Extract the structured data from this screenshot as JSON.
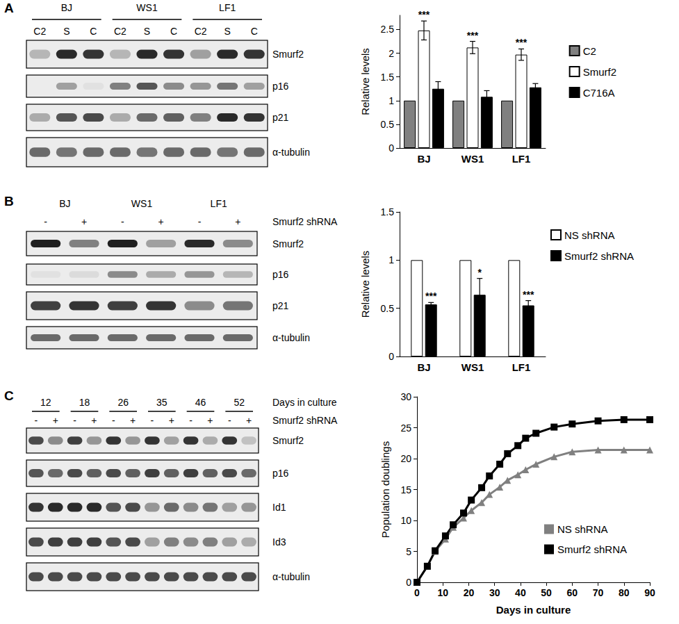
{
  "panel_labels": [
    "A",
    "B",
    "C"
  ],
  "blots": [
    {
      "groups": [
        {
          "name": "BJ",
          "lanes": [
            "C2",
            "S",
            "C"
          ]
        },
        {
          "name": "WS1",
          "lanes": [
            "C2",
            "S",
            "C"
          ]
        },
        {
          "name": "LF1",
          "lanes": [
            "C2",
            "S",
            "C"
          ]
        }
      ],
      "rows": [
        {
          "label": "Smurf2",
          "intensity": [
            0.25,
            0.9,
            0.85,
            0.25,
            0.9,
            0.85,
            0.35,
            0.9,
            0.85
          ]
        },
        {
          "label": "p16",
          "intensity": [
            0.0,
            0.35,
            0.05,
            0.5,
            0.7,
            0.45,
            0.4,
            0.55,
            0.35
          ]
        },
        {
          "label": "p21",
          "intensity": [
            0.3,
            0.7,
            0.75,
            0.3,
            0.6,
            0.65,
            0.5,
            0.9,
            0.85
          ]
        },
        {
          "label": "α-tubulin",
          "intensity": [
            0.6,
            0.55,
            0.6,
            0.6,
            0.55,
            0.6,
            0.6,
            0.55,
            0.6
          ]
        }
      ]
    },
    {
      "groups": [
        {
          "name": "BJ",
          "lanes": [
            "-",
            "+"
          ]
        },
        {
          "name": "WS1",
          "lanes": [
            "-",
            "+"
          ]
        },
        {
          "name": "LF1",
          "lanes": [
            "-",
            "+"
          ]
        }
      ],
      "lane_title": "Smurf2 shRNA",
      "rows": [
        {
          "label": "Smurf2",
          "intensity": [
            0.95,
            0.5,
            0.95,
            0.35,
            0.9,
            0.45
          ]
        },
        {
          "label": "p16",
          "intensity": [
            0.05,
            0.08,
            0.45,
            0.3,
            0.4,
            0.25
          ]
        },
        {
          "label": "p21",
          "intensity": [
            0.8,
            0.85,
            0.8,
            0.85,
            0.45,
            0.55
          ]
        },
        {
          "label": "α-tubulin",
          "intensity": [
            0.6,
            0.6,
            0.6,
            0.6,
            0.6,
            0.6
          ]
        }
      ]
    },
    {
      "groups": [
        {
          "name": "12",
          "lanes": [
            "-",
            "+"
          ]
        },
        {
          "name": "18",
          "lanes": [
            "-",
            "+"
          ]
        },
        {
          "name": "26",
          "lanes": [
            "-",
            "+"
          ]
        },
        {
          "name": "35",
          "lanes": [
            "-",
            "+"
          ]
        },
        {
          "name": "46",
          "lanes": [
            "-",
            "+"
          ]
        },
        {
          "name": "52",
          "lanes": [
            "-",
            "+"
          ]
        }
      ],
      "group_title": "Days in culture",
      "lane_title": "Smurf2 shRNA",
      "rows": [
        {
          "label": "Smurf2",
          "intensity": [
            0.75,
            0.45,
            0.8,
            0.4,
            0.85,
            0.4,
            0.85,
            0.35,
            0.85,
            0.3,
            0.85,
            0.2
          ]
        },
        {
          "label": "p16",
          "intensity": [
            0.7,
            0.6,
            0.75,
            0.65,
            0.75,
            0.65,
            0.8,
            0.65,
            0.8,
            0.65,
            0.75,
            0.6
          ]
        },
        {
          "label": "Id1",
          "intensity": [
            0.85,
            0.9,
            0.9,
            0.9,
            0.7,
            0.75,
            0.4,
            0.6,
            0.45,
            0.55,
            0.35,
            0.4
          ]
        },
        {
          "label": "Id3",
          "intensity": [
            0.75,
            0.8,
            0.8,
            0.8,
            0.7,
            0.75,
            0.35,
            0.5,
            0.45,
            0.5,
            0.35,
            0.3
          ]
        },
        {
          "label": "α-tubulin",
          "intensity": [
            0.75,
            0.75,
            0.75,
            0.75,
            0.75,
            0.75,
            0.75,
            0.75,
            0.75,
            0.75,
            0.75,
            0.75
          ]
        }
      ]
    }
  ],
  "chart_data": [
    {
      "type": "bar",
      "y_label": "Relative levels",
      "categories": [
        "BJ",
        "WS1",
        "LF1"
      ],
      "series": [
        {
          "name": "C2",
          "color": "#808080",
          "values": [
            1,
            1,
            1
          ]
        },
        {
          "name": "Smurf2",
          "color": "#ffffff",
          "values": [
            2.48,
            2.12,
            1.97
          ],
          "errors": [
            0.2,
            0.13,
            0.12
          ],
          "annotations": [
            "***",
            "***",
            "***"
          ]
        },
        {
          "name": "C716A",
          "color": "#000000",
          "values": [
            1.25,
            1.08,
            1.28
          ],
          "errors": [
            0.15,
            0.13,
            0.08
          ]
        }
      ],
      "ylim": [
        0,
        2.8
      ],
      "yticks": [
        0,
        0.5,
        1,
        1.5,
        2,
        2.5
      ],
      "grid": false,
      "legend": "right"
    },
    {
      "type": "bar",
      "y_label": "Relative levels",
      "categories": [
        "BJ",
        "WS1",
        "LF1"
      ],
      "series": [
        {
          "name": "NS shRNA",
          "color": "#ffffff",
          "values": [
            1,
            1,
            1
          ]
        },
        {
          "name": "Smurf2 shRNA",
          "color": "#000000",
          "values": [
            0.54,
            0.64,
            0.53
          ],
          "errors": [
            0.02,
            0.17,
            0.05
          ],
          "annotations": [
            "***",
            "*",
            "***"
          ]
        }
      ],
      "ylim": [
        0,
        1.5
      ],
      "yticks": [
        0,
        0.5,
        1,
        1.5
      ],
      "grid": false,
      "legend": "right"
    },
    {
      "type": "line",
      "x_label": "Days in culture",
      "y_label": "Population doublings",
      "x": [
        0,
        4,
        7,
        11,
        14,
        18,
        21,
        25,
        28,
        32,
        35,
        39,
        42,
        46,
        53,
        60,
        70,
        80,
        90
      ],
      "series": [
        {
          "name": "NS shRNA",
          "color": "#808080",
          "marker": "triangle",
          "values": [
            0,
            2.6,
            5,
            7,
            8.9,
            10.4,
            11.6,
            12.9,
            14.2,
            15.4,
            16.5,
            17.4,
            18.2,
            19.1,
            20.3,
            21.1,
            21.4,
            21.4,
            21.4
          ]
        },
        {
          "name": "Smurf2 shRNA",
          "color": "#000000",
          "marker": "square",
          "values": [
            0,
            2.6,
            5.1,
            7.5,
            9.3,
            11.2,
            13.3,
            15.3,
            17.2,
            19.1,
            20.8,
            22.1,
            23.3,
            24.1,
            25.1,
            25.6,
            26.1,
            26.3,
            26.3
          ]
        }
      ],
      "xlim": [
        0,
        90
      ],
      "xticks": [
        0,
        10,
        20,
        30,
        40,
        50,
        60,
        70,
        80,
        90
      ],
      "ylim": [
        0,
        30
      ],
      "yticks": [
        0,
        5,
        10,
        15,
        20,
        25,
        30
      ],
      "grid": false,
      "legend": "lower right"
    }
  ]
}
